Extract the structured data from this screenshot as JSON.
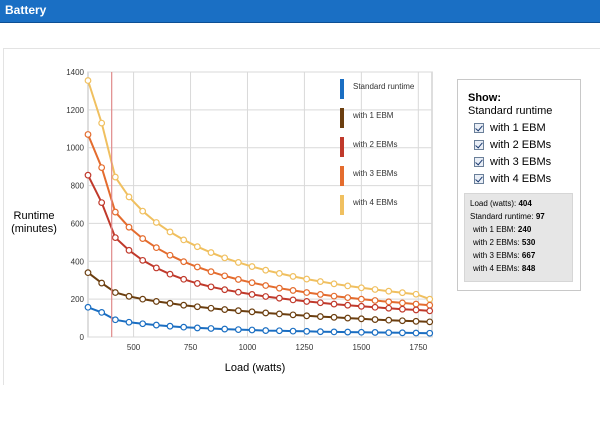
{
  "header": {
    "title": "Battery"
  },
  "chart_data": {
    "type": "line",
    "xlabel": "Load (watts)",
    "ylabel_line1": "Runtime",
    "ylabel_line2": "(minutes)",
    "xlim": [
      300,
      1810
    ],
    "ylim": [
      0,
      1400
    ],
    "x_ticks": [
      500,
      750,
      1000,
      1250,
      1500,
      1750
    ],
    "y_ticks": [
      0,
      200,
      400,
      600,
      800,
      1000,
      1200,
      1400
    ],
    "cursor_x": 404,
    "x": [
      300,
      360,
      420,
      480,
      540,
      600,
      660,
      720,
      780,
      840,
      900,
      960,
      1020,
      1080,
      1140,
      1200,
      1260,
      1320,
      1380,
      1440,
      1500,
      1560,
      1620,
      1680,
      1740,
      1800
    ],
    "series": [
      {
        "name": "Standard runtime",
        "color": "#1a6ec2",
        "values": [
          157,
          130,
          91,
          78,
          70,
          63,
          57,
          52,
          48,
          45,
          42,
          39,
          37,
          34,
          33,
          31,
          30,
          28,
          27,
          26,
          25,
          24,
          23,
          22,
          21,
          20
        ]
      },
      {
        "name": "with 1 EBM",
        "color": "#6b3e0f",
        "values": [
          340,
          285,
          235,
          215,
          200,
          188,
          178,
          168,
          160,
          152,
          145,
          139,
          133,
          127,
          122,
          117,
          112,
          108,
          104,
          100,
          96,
          92,
          89,
          86,
          83,
          80
        ]
      },
      {
        "name": "with 2 EBMs",
        "color": "#c0392b",
        "values": [
          855,
          710,
          525,
          458,
          405,
          365,
          332,
          305,
          283,
          265,
          250,
          237,
          225,
          214,
          205,
          196,
          188,
          181,
          174,
          168,
          162,
          157,
          152,
          147,
          143,
          138
        ]
      },
      {
        "name": "with 3 EBMs",
        "color": "#e46c2e",
        "values": [
          1070,
          895,
          660,
          580,
          520,
          472,
          432,
          398,
          370,
          345,
          323,
          304,
          287,
          272,
          258,
          246,
          235,
          225,
          216,
          208,
          200,
          193,
          186,
          180,
          174,
          168
        ]
      },
      {
        "name": "with 4 EBMs",
        "color": "#f0c060",
        "values": [
          1355,
          1130,
          845,
          740,
          665,
          605,
          555,
          513,
          477,
          446,
          418,
          394,
          372,
          353,
          336,
          320,
          306,
          293,
          281,
          270,
          260,
          251,
          242,
          234,
          226,
          200
        ]
      }
    ]
  },
  "show_panel": {
    "title": "Show:",
    "standard_label": "Standard runtime",
    "options": [
      "with 1 EBM",
      "with 2 EBMs",
      "with 3 EBMs",
      "with 4 EBMs"
    ]
  },
  "readout": {
    "load_label": "Load (watts):",
    "load_value": "404",
    "std_label": "Standard runtime:",
    "std_value": "97",
    "ebm1_label": "with 1 EBM:",
    "ebm1_value": "240",
    "ebm2_label": "with 2 EBMs:",
    "ebm2_value": "530",
    "ebm3_label": "with 3 EBMs:",
    "ebm3_value": "667",
    "ebm4_label": "with 4 EBMs:",
    "ebm4_value": "848"
  }
}
